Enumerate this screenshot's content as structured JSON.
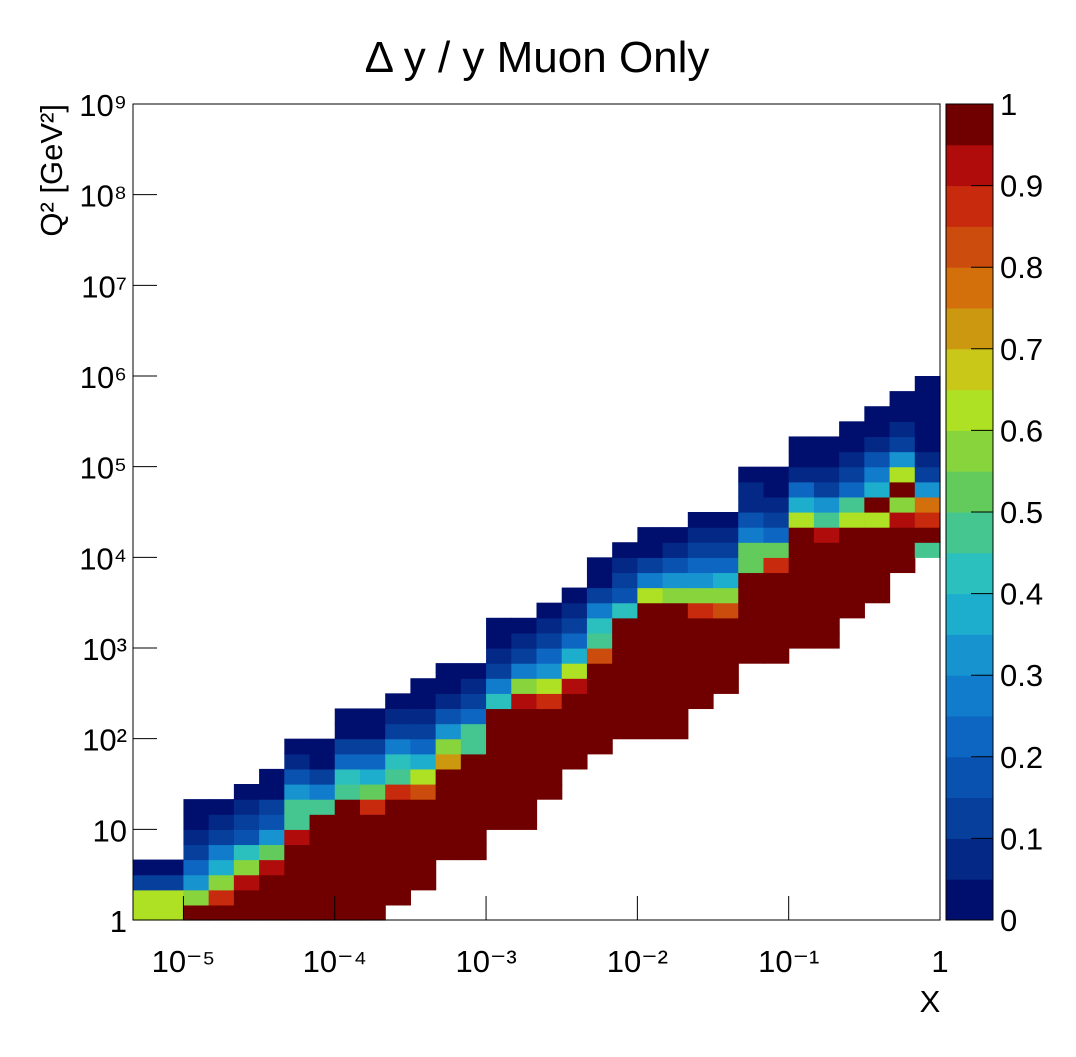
{
  "chart_data": {
    "type": "heatmap2d",
    "title": "Δ y / y Muon Only",
    "x_label": "X",
    "y_label": "Q² [GeV²]",
    "log_x": true,
    "log_y": true,
    "xlim": [
      4.6416e-06,
      1
    ],
    "ylim": [
      1,
      1000000000
    ],
    "nx": 32,
    "ny": 54,
    "xticks": [
      {
        "value": 1e-05,
        "label": "10⁻⁵"
      },
      {
        "value": 0.0001,
        "label": "10⁻⁴"
      },
      {
        "value": 0.001,
        "label": "10⁻³"
      },
      {
        "value": 0.01,
        "label": "10⁻²"
      },
      {
        "value": 0.1,
        "label": "10⁻¹"
      },
      1
    ],
    "yticks": [
      1,
      10,
      {
        "value": 100,
        "label": "10²"
      },
      {
        "value": 1000,
        "label": "10³"
      },
      {
        "value": 10000,
        "label": "10⁴"
      },
      {
        "value": 100000,
        "label": "10⁵"
      },
      {
        "value": 1000000,
        "label": "10⁶"
      },
      {
        "value": 10000000,
        "label": "10⁷"
      },
      {
        "value": 100000000,
        "label": "10⁸"
      },
      {
        "value": 1000000000,
        "label": "10⁹"
      }
    ],
    "zlim": [
      0,
      1
    ],
    "zticks": [
      0,
      0.1,
      0.2,
      0.3,
      0.4,
      0.5,
      0.6,
      0.7,
      0.8,
      0.9,
      1
    ],
    "palette": [
      "#000f6e",
      "#042886",
      "#073f9c",
      "#0a52b0",
      "#0d66c2",
      "#117bcc",
      "#1793d0",
      "#1eaecd",
      "#2bbfbd",
      "#45c691",
      "#63cb5c",
      "#87d43d",
      "#aee123",
      "#c9c818",
      "#cc9810",
      "#d4700c",
      "#cc4c0e",
      "#c82a0e",
      "#b00c0c",
      "#700000"
    ],
    "columns": [
      {
        "y_start_bin": 0,
        "values": [
          0.62,
          0.62,
          0.12,
          0.04
        ]
      },
      {
        "y_start_bin": 0,
        "values": [
          0.62,
          0.62,
          0.12,
          0.04
        ]
      },
      {
        "y_start_bin": 0,
        "values": [
          0.98,
          0.55,
          0.33,
          0.22,
          0.12,
          0.08,
          0.04,
          0.02
        ]
      },
      {
        "y_start_bin": 0,
        "values": [
          0.98,
          0.85,
          0.55,
          0.38,
          0.25,
          0.1,
          0.07,
          0.02
        ]
      },
      {
        "y_start_bin": 0,
        "values": [
          0.98,
          0.98,
          0.9,
          0.58,
          0.42,
          0.18,
          0.12,
          0.05,
          0.02
        ]
      },
      {
        "y_start_bin": 0,
        "values": [
          0.98,
          0.98,
          0.98,
          0.92,
          0.5,
          0.3,
          0.18,
          0.12,
          0.04,
          0.02
        ]
      },
      {
        "y_start_bin": 0,
        "values": [
          0.98,
          0.98,
          0.98,
          0.98,
          0.98,
          0.92,
          0.48,
          0.48,
          0.3,
          0.15,
          0.08,
          0.02
        ]
      },
      {
        "y_start_bin": 0,
        "values": [
          0.98,
          0.98,
          0.98,
          0.98,
          0.98,
          0.95,
          0.95,
          0.48,
          0.25,
          0.12,
          0.04,
          0.02
        ]
      },
      {
        "y_start_bin": 0,
        "values": [
          0.98,
          0.98,
          0.98,
          0.98,
          0.98,
          0.98,
          0.95,
          0.95,
          0.45,
          0.42,
          0.2,
          0.1,
          0.02,
          0.02
        ]
      },
      {
        "y_start_bin": 0,
        "values": [
          0.98,
          0.98,
          0.98,
          0.98,
          0.98,
          0.98,
          0.98,
          0.88,
          0.5,
          0.38,
          0.22,
          0.12,
          0.04,
          0.02
        ]
      },
      {
        "y_start_bin": 1,
        "values": [
          0.98,
          0.98,
          0.98,
          0.98,
          0.98,
          0.98,
          0.98,
          0.85,
          0.48,
          0.4,
          0.25,
          0.12,
          0.06,
          0.02
        ]
      },
      {
        "y_start_bin": 2,
        "values": [
          0.98,
          0.98,
          0.98,
          0.98,
          0.98,
          0.98,
          0.8,
          0.62,
          0.35,
          0.2,
          0.1,
          0.05,
          0.02,
          0.02
        ]
      },
      {
        "y_start_bin": 4,
        "values": [
          0.98,
          0.98,
          0.98,
          0.98,
          0.98,
          0.98,
          0.72,
          0.55,
          0.3,
          0.15,
          0.08,
          0.02,
          0.02
        ]
      },
      {
        "y_start_bin": 4,
        "values": [
          0.98,
          0.98,
          0.98,
          0.98,
          0.98,
          0.98,
          0.98,
          0.48,
          0.45,
          0.2,
          0.1,
          0.05,
          0.02
        ]
      },
      {
        "y_start_bin": 6,
        "values": [
          0.98,
          0.98,
          0.98,
          0.98,
          0.98,
          0.98,
          0.98,
          0.98,
          0.4,
          0.28,
          0.12,
          0.08,
          0.02,
          0.02
        ]
      },
      {
        "y_start_bin": 6,
        "values": [
          0.98,
          0.98,
          0.98,
          0.98,
          0.98,
          0.98,
          0.98,
          0.98,
          0.92,
          0.55,
          0.25,
          0.12,
          0.05,
          0.02
        ]
      },
      {
        "y_start_bin": 8,
        "values": [
          0.98,
          0.98,
          0.98,
          0.98,
          0.98,
          0.98,
          0.85,
          0.62,
          0.32,
          0.2,
          0.1,
          0.05,
          0.02
        ]
      },
      {
        "y_start_bin": 10,
        "values": [
          0.98,
          0.98,
          0.98,
          0.98,
          0.98,
          0.92,
          0.6,
          0.35,
          0.22,
          0.1,
          0.05,
          0.02
        ]
      },
      {
        "y_start_bin": 11,
        "values": [
          0.98,
          0.98,
          0.98,
          0.98,
          0.98,
          0.98,
          0.82,
          0.45,
          0.42,
          0.25,
          0.12,
          0.04,
          0.02
        ]
      },
      {
        "y_start_bin": 12,
        "values": [
          0.98,
          0.98,
          0.98,
          0.98,
          0.98,
          0.98,
          0.98,
          0.98,
          0.42,
          0.18,
          0.1,
          0.05,
          0.02
        ]
      },
      {
        "y_start_bin": 12,
        "values": [
          0.98,
          0.98,
          0.98,
          0.98,
          0.98,
          0.98,
          0.98,
          0.98,
          0.98,
          0.6,
          0.25,
          0.12,
          0.02,
          0.02
        ]
      },
      {
        "y_start_bin": 12,
        "values": [
          0.98,
          0.98,
          0.98,
          0.98,
          0.98,
          0.98,
          0.98,
          0.98,
          0.95,
          0.55,
          0.3,
          0.15,
          0.05,
          0.02
        ]
      },
      {
        "y_start_bin": 14,
        "values": [
          0.98,
          0.98,
          0.98,
          0.98,
          0.98,
          0.98,
          0.85,
          0.58,
          0.32,
          0.2,
          0.12,
          0.05,
          0.02
        ]
      },
      {
        "y_start_bin": 15,
        "values": [
          0.98,
          0.98,
          0.98,
          0.98,
          0.98,
          0.8,
          0.55,
          0.35,
          0.22,
          0.1,
          0.05,
          0.02
        ]
      },
      {
        "y_start_bin": 17,
        "values": [
          0.98,
          0.98,
          0.98,
          0.98,
          0.98,
          0.98,
          0.5,
          0.5,
          0.25,
          0.15,
          0.08,
          0.05,
          0.02
        ]
      },
      {
        "y_start_bin": 17,
        "values": [
          0.98,
          0.98,
          0.98,
          0.98,
          0.98,
          0.98,
          0.85,
          0.5,
          0.22,
          0.12,
          0.08,
          0.02,
          0.02
        ]
      },
      {
        "y_start_bin": 18,
        "values": [
          0.98,
          0.98,
          0.98,
          0.98,
          0.98,
          0.98,
          0.98,
          0.95,
          0.6,
          0.35,
          0.2,
          0.08,
          0.02,
          0.02
        ]
      },
      {
        "y_start_bin": 18,
        "values": [
          0.98,
          0.98,
          0.98,
          0.98,
          0.98,
          0.98,
          0.98,
          0.9,
          0.45,
          0.3,
          0.12,
          0.06,
          0.02,
          0.02
        ]
      },
      {
        "y_start_bin": 20,
        "values": [
          0.98,
          0.98,
          0.98,
          0.98,
          0.98,
          0.98,
          0.62,
          0.45,
          0.22,
          0.1,
          0.05,
          0.02,
          0.02
        ]
      },
      {
        "y_start_bin": 21,
        "values": [
          0.98,
          0.98,
          0.98,
          0.98,
          0.98,
          0.6,
          0.95,
          0.35,
          0.28,
          0.15,
          0.05,
          0.02,
          0.02
        ]
      },
      {
        "y_start_bin": 23,
        "values": [
          0.98,
          0.98,
          0.98,
          0.9,
          0.55,
          0.98,
          0.62,
          0.3,
          0.12,
          0.06,
          0.02,
          0.02
        ]
      },
      {
        "y_start_bin": 24,
        "values": [
          0.45,
          0.98,
          0.85,
          0.75,
          0.3,
          0.12,
          0.08,
          0.04,
          0.02,
          0.02,
          0.02,
          0.02
        ]
      }
    ]
  }
}
